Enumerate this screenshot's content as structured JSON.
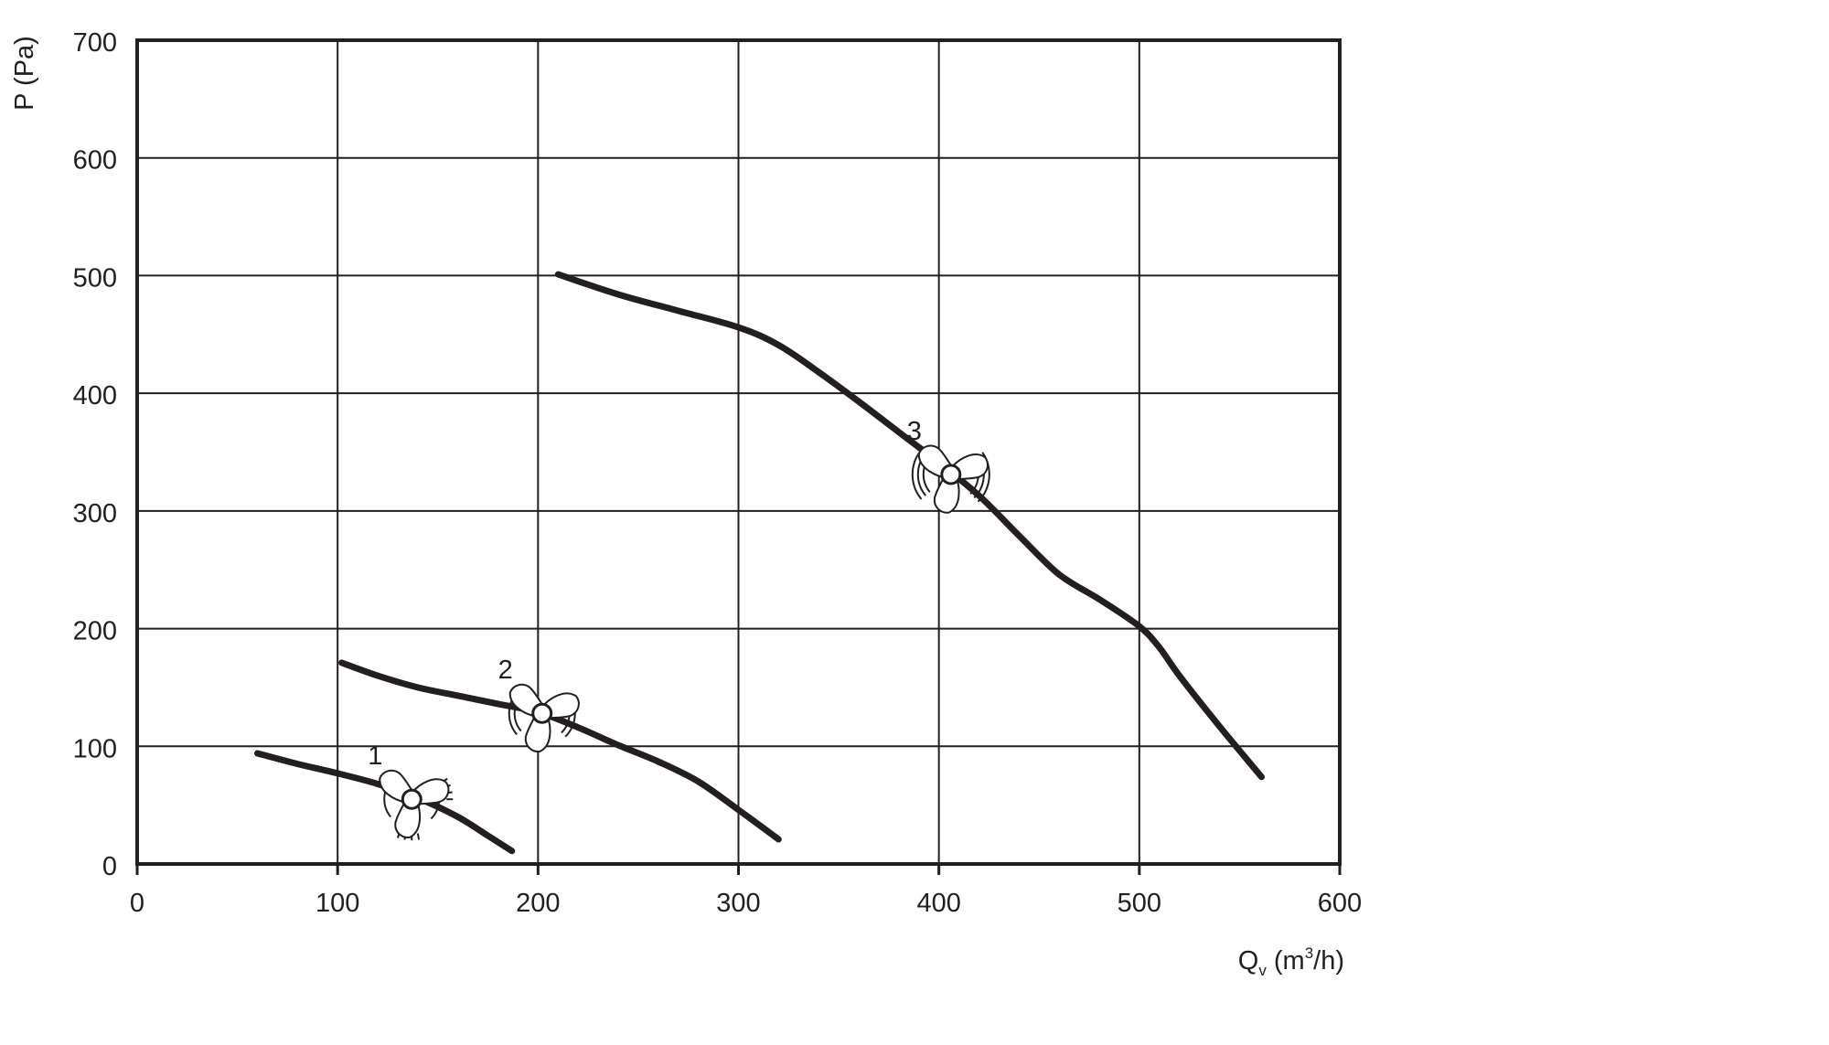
{
  "chart_data": {
    "type": "line",
    "title": "",
    "xlabel": {
      "main": "Q",
      "sub": "v",
      "unit_pre": " (m",
      "sup": "3",
      "unit_post": "/h)"
    },
    "ylabel": "P (Pa)",
    "xlim": [
      0,
      600
    ],
    "ylim": [
      0,
      700
    ],
    "xticks": [
      "0",
      "100",
      "200",
      "300",
      "400",
      "500",
      "600"
    ],
    "yticks": [
      "0",
      "100",
      "200",
      "300",
      "400",
      "500",
      "600",
      "700"
    ],
    "grid": true,
    "legend": "none",
    "series": [
      {
        "name": "1",
        "fan_marker_at": [
          137,
          55
        ],
        "fan_arcs": 1,
        "points": [
          [
            60,
            94
          ],
          [
            80,
            85
          ],
          [
            100,
            77
          ],
          [
            120,
            68
          ],
          [
            140,
            56
          ],
          [
            160,
            40
          ],
          [
            175,
            24
          ],
          [
            187,
            11
          ]
        ]
      },
      {
        "name": "2",
        "fan_marker_at": [
          202,
          128
        ],
        "fan_arcs": 2,
        "points": [
          [
            102,
            171
          ],
          [
            120,
            160
          ],
          [
            140,
            150
          ],
          [
            160,
            143
          ],
          [
            180,
            136
          ],
          [
            200,
            129
          ],
          [
            220,
            116
          ],
          [
            240,
            101
          ],
          [
            260,
            87
          ],
          [
            280,
            70
          ],
          [
            300,
            46
          ],
          [
            320,
            21
          ]
        ]
      },
      {
        "name": "3",
        "fan_marker_at": [
          406,
          331
        ],
        "fan_arcs": 3,
        "points": [
          [
            210,
            501
          ],
          [
            240,
            484
          ],
          [
            270,
            470
          ],
          [
            300,
            456
          ],
          [
            320,
            441
          ],
          [
            340,
            418
          ],
          [
            360,
            393
          ],
          [
            380,
            367
          ],
          [
            400,
            341
          ],
          [
            420,
            313
          ],
          [
            440,
            279
          ],
          [
            460,
            246
          ],
          [
            480,
            225
          ],
          [
            500,
            202
          ],
          [
            510,
            184
          ],
          [
            520,
            160
          ],
          [
            540,
            117
          ],
          [
            561,
            74
          ]
        ]
      }
    ],
    "colors": {
      "ink": "#231f20",
      "background": "#ffffff"
    }
  }
}
